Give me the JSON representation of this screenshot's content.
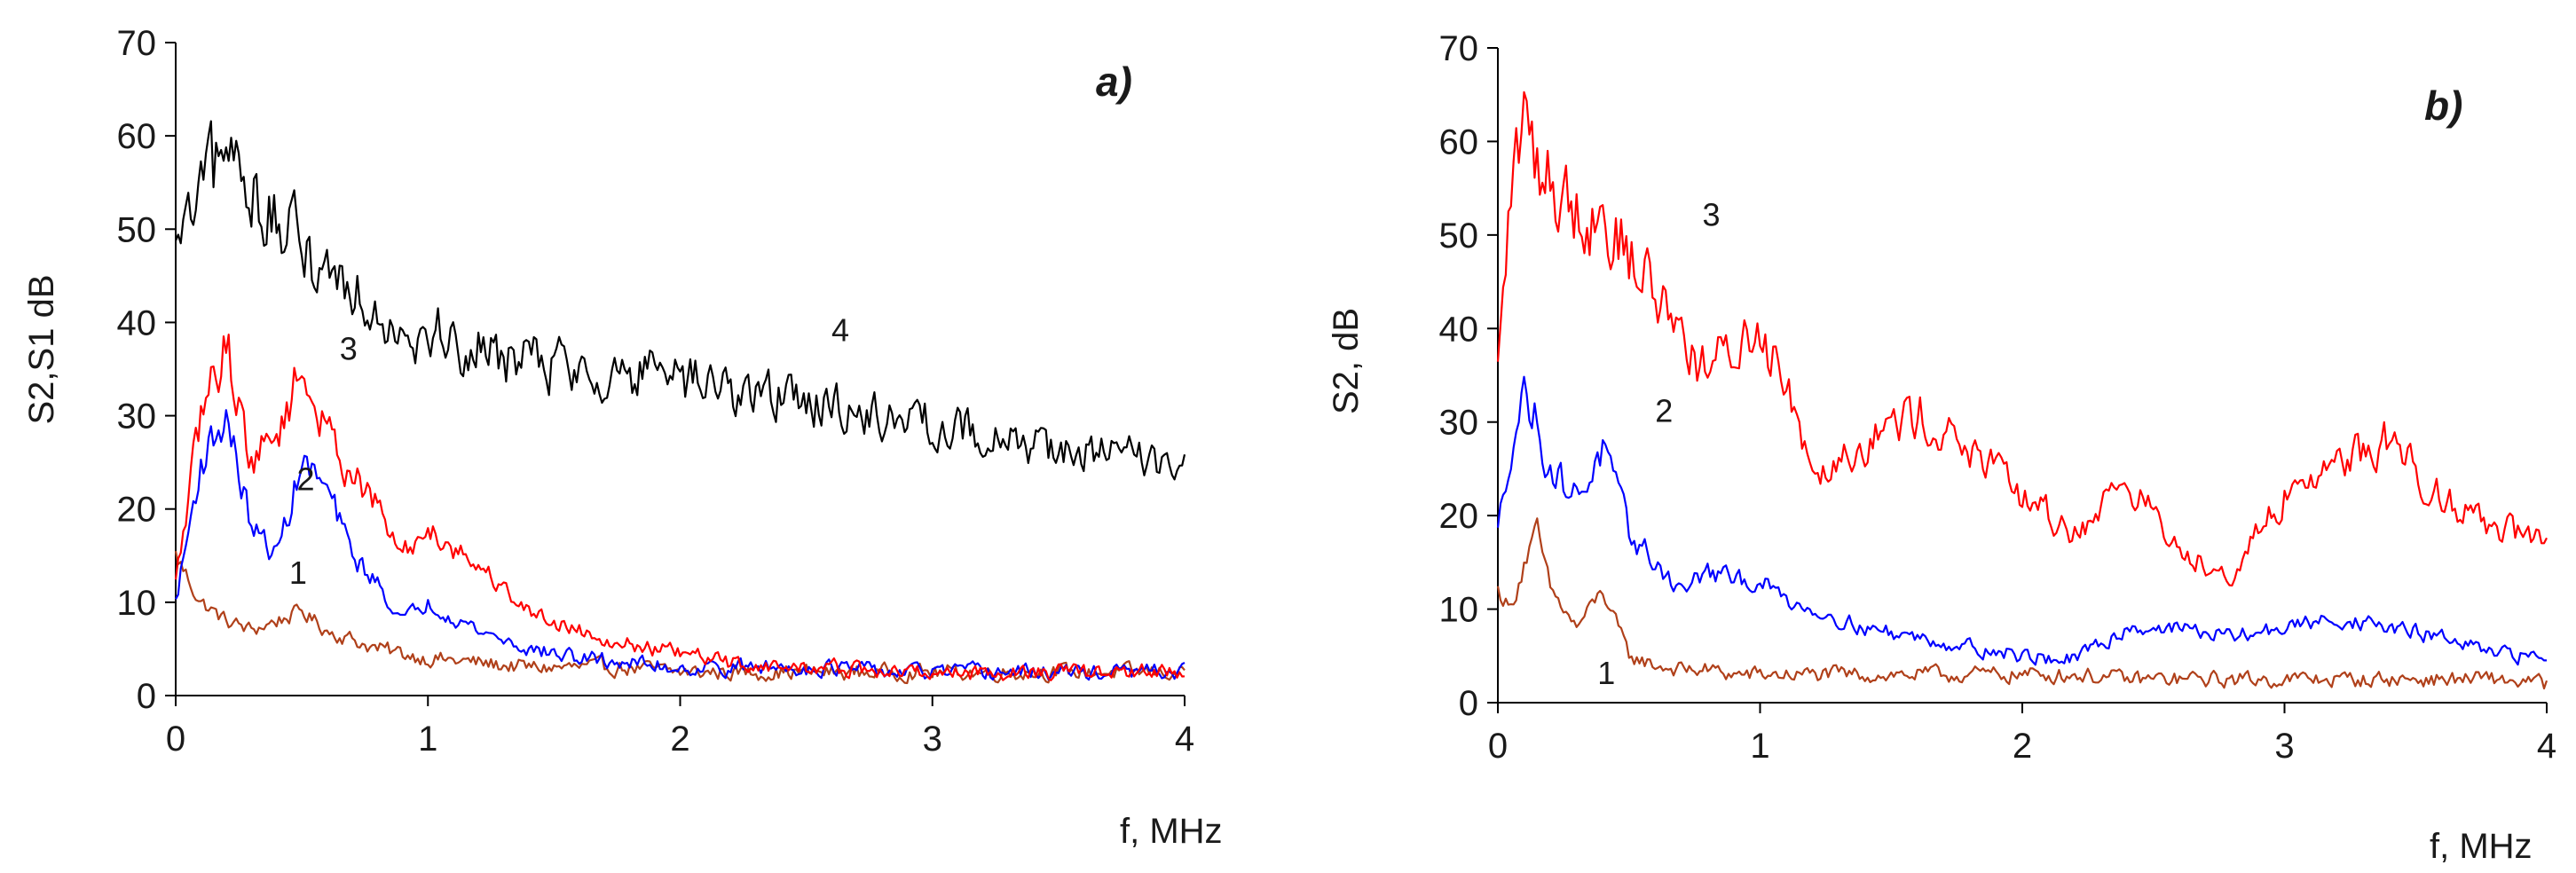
{
  "chart_data": [
    {
      "type": "line",
      "panel_label": "a)",
      "xlabel": "f, MHz",
      "ylabel": "S2,S1 dB",
      "xlim": [
        0,
        4
      ],
      "ylim": [
        0,
        70
      ],
      "x_ticks": [
        "0",
        "1",
        "2",
        "3",
        "4"
      ],
      "y_ticks": [
        "0",
        "10",
        "20",
        "30",
        "40",
        "50",
        "60",
        "70"
      ],
      "x_anchors": [
        0,
        0.1,
        0.2,
        0.3,
        0.4,
        0.5,
        0.6,
        0.7,
        0.8,
        0.9,
        1.0,
        1.2,
        1.4,
        1.6,
        1.8,
        2.0,
        2.2,
        2.4,
        2.6,
        2.8,
        3.0,
        3.2,
        3.4,
        3.6,
        3.8,
        4.0
      ],
      "series": [
        {
          "name": "1",
          "label": "1",
          "color": "#b0401a",
          "values": [
            15,
            10,
            8,
            7,
            8,
            9,
            7,
            6,
            5,
            4.5,
            4,
            3.5,
            3,
            3,
            3,
            2.5,
            2.5,
            2.5,
            2.5,
            2.5,
            2.5,
            2.5,
            2.5,
            2.5,
            2.5,
            2.5
          ],
          "label_pos": [
            0.45,
            12
          ]
        },
        {
          "name": "2",
          "label": "2",
          "color": "#0000ff",
          "values": [
            10,
            25,
            30,
            18,
            15,
            25,
            22,
            15,
            12,
            8,
            10,
            7,
            5,
            4,
            3.5,
            3,
            3,
            3,
            3,
            2.5,
            2.5,
            2.5,
            2.5,
            2.5,
            2.5,
            2.5
          ],
          "label_pos": [
            0.48,
            22
          ]
        },
        {
          "name": "3",
          "label": "3",
          "color": "#ff0000",
          "values": [
            12,
            30,
            38,
            25,
            28,
            35,
            28,
            24,
            20,
            15,
            18,
            14,
            9,
            7,
            5.5,
            4.5,
            3.5,
            3,
            3,
            2.5,
            2.5,
            2.5,
            2.5,
            2.5,
            2.5,
            2.5
          ],
          "label_pos": [
            0.65,
            36
          ]
        },
        {
          "name": "4",
          "label": "4",
          "color": "#000000",
          "values": [
            47,
            53,
            58,
            55,
            50,
            48,
            46,
            44,
            42,
            40,
            39,
            37,
            36,
            35,
            34.5,
            33.5,
            33,
            32,
            31,
            30,
            29,
            28,
            27,
            26,
            25.5,
            25
          ],
          "label_pos": [
            2.6,
            38
          ]
        }
      ]
    },
    {
      "type": "line",
      "panel_label": "b)",
      "xlabel": "f, MHz",
      "ylabel": "S2, dB",
      "xlim": [
        0,
        4
      ],
      "ylim": [
        0,
        70
      ],
      "x_ticks": [
        "0",
        "1",
        "2",
        "3",
        "4"
      ],
      "y_ticks": [
        "0",
        "10",
        "20",
        "30",
        "40",
        "50",
        "60",
        "70"
      ],
      "x_anchors": [
        0,
        0.05,
        0.1,
        0.15,
        0.2,
        0.3,
        0.4,
        0.5,
        0.6,
        0.7,
        0.8,
        0.9,
        1.0,
        1.1,
        1.2,
        1.4,
        1.6,
        1.8,
        2.0,
        2.2,
        2.4,
        2.6,
        2.8,
        3.0,
        3.2,
        3.4,
        3.6,
        3.8,
        4.0
      ],
      "series": [
        {
          "name": "1",
          "label": "1",
          "color": "#b0401a",
          "values": [
            12,
            10,
            15,
            18,
            12,
            8,
            12,
            5,
            4,
            3.5,
            3.5,
            3,
            3,
            3,
            3,
            3,
            3,
            3,
            3,
            3,
            2.5,
            2.5,
            2.5,
            2.5,
            2.5,
            2.5,
            2.5,
            2.5,
            2
          ],
          "label_pos": [
            0.38,
            2
          ]
        },
        {
          "name": "2",
          "label": "2",
          "color": "#0000ff",
          "values": [
            18,
            28,
            33,
            30,
            25,
            22,
            27,
            18,
            15,
            12,
            14,
            13,
            13,
            11,
            10,
            8,
            7,
            6,
            5,
            4.5,
            8,
            8,
            7,
            8,
            9,
            8,
            7,
            5,
            5
          ],
          "label_pos": [
            0.6,
            30
          ]
        },
        {
          "name": "3",
          "label": "3",
          "color": "#ff0000",
          "values": [
            35,
            55,
            62,
            58,
            56,
            53,
            52,
            48,
            44,
            40,
            35,
            38,
            40,
            35,
            25,
            28,
            31,
            27,
            22,
            18,
            24,
            16,
            14,
            22,
            26,
            28,
            22,
            19,
            17
          ],
          "label_pos": [
            0.78,
            51
          ]
        }
      ]
    }
  ]
}
